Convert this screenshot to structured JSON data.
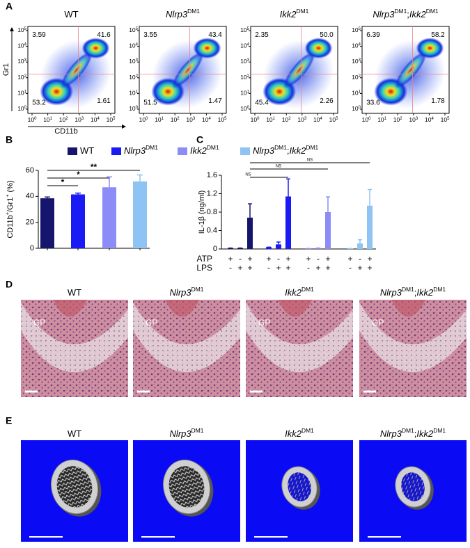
{
  "panel_labels": [
    "A",
    "B",
    "C",
    "D",
    "E"
  ],
  "genotypes": [
    [
      {
        "text": "WT"
      }
    ],
    [
      {
        "text": "Nlrp3",
        "italic": true
      },
      {
        "text": "DM1",
        "sup": true
      }
    ],
    [
      {
        "text": "Ikk2",
        "italic": true
      },
      {
        "text": "DM1",
        "sup": true
      }
    ],
    [
      {
        "text": "Nlrp3",
        "italic": true
      },
      {
        "text": "DM1",
        "sup": true
      },
      {
        "text": ";"
      },
      {
        "text": "Ikk2",
        "italic": true
      },
      {
        "text": "DM1",
        "sup": true
      }
    ]
  ],
  "flow": {
    "x_label": "CD11b",
    "y_label": "Gr1",
    "tick_base": "10",
    "tick_exponents": [
      0,
      1,
      2,
      3,
      4,
      5
    ],
    "quadrants": [
      [
        "3.59",
        "41.6",
        "53.2",
        "1.61"
      ],
      [
        "3.55",
        "43.4",
        "51.5",
        "1.47"
      ],
      [
        "2.35",
        "50.0",
        "45.4",
        "2.26"
      ],
      [
        "6.39",
        "58.2",
        "33.6",
        "1.78"
      ]
    ]
  },
  "histology": {
    "region_label": "GP"
  },
  "chart_data": [
    {
      "type": "bar",
      "ylabel": [
        {
          "text": "CD11b"
        },
        {
          "text": "+",
          "sup": true
        },
        {
          "text": "/Gr1"
        },
        {
          "text": "+",
          "sup": true
        },
        {
          "text": " (%)"
        }
      ],
      "values": [
        38.5,
        41.5,
        47,
        51.5
      ],
      "errors": [
        1,
        1,
        8,
        5
      ],
      "colors": [
        "#15156e",
        "#1a1af5",
        "#8c8cf7",
        "#8ec4f3"
      ],
      "ylim": [
        0,
        60
      ],
      "yticks": [
        0,
        20,
        40,
        60
      ],
      "significance": [
        "*",
        "*",
        "**"
      ]
    },
    {
      "type": "grouped_bar",
      "ylabel": "IL-1β (ng/ml)",
      "series": [
        {
          "color": "#15156e",
          "values": [
            0.02,
            0.02,
            0.68
          ],
          "errors": [
            0,
            0,
            0.3
          ]
        },
        {
          "color": "#1a1af5",
          "values": [
            0.04,
            0.1,
            1.14
          ],
          "errors": [
            0,
            0.05,
            0.38
          ]
        },
        {
          "color": "#8c8cf7",
          "values": [
            0.01,
            0.02,
            0.8
          ],
          "errors": [
            0,
            0,
            0.33
          ]
        },
        {
          "color": "#8ec4f3",
          "values": [
            0.01,
            0.12,
            0.94
          ],
          "errors": [
            0,
            0.08,
            0.35
          ]
        }
      ],
      "rows": [
        {
          "name": "ATP",
          "signs": [
            "+",
            "-",
            "+"
          ]
        },
        {
          "name": "LPS",
          "signs": [
            "-",
            "+",
            "+"
          ]
        }
      ],
      "ylim": [
        0,
        1.6
      ],
      "yticks": [
        0,
        0.4,
        0.8,
        1.2,
        1.6
      ],
      "significance": [
        "NS",
        "NS",
        "NS"
      ]
    }
  ]
}
